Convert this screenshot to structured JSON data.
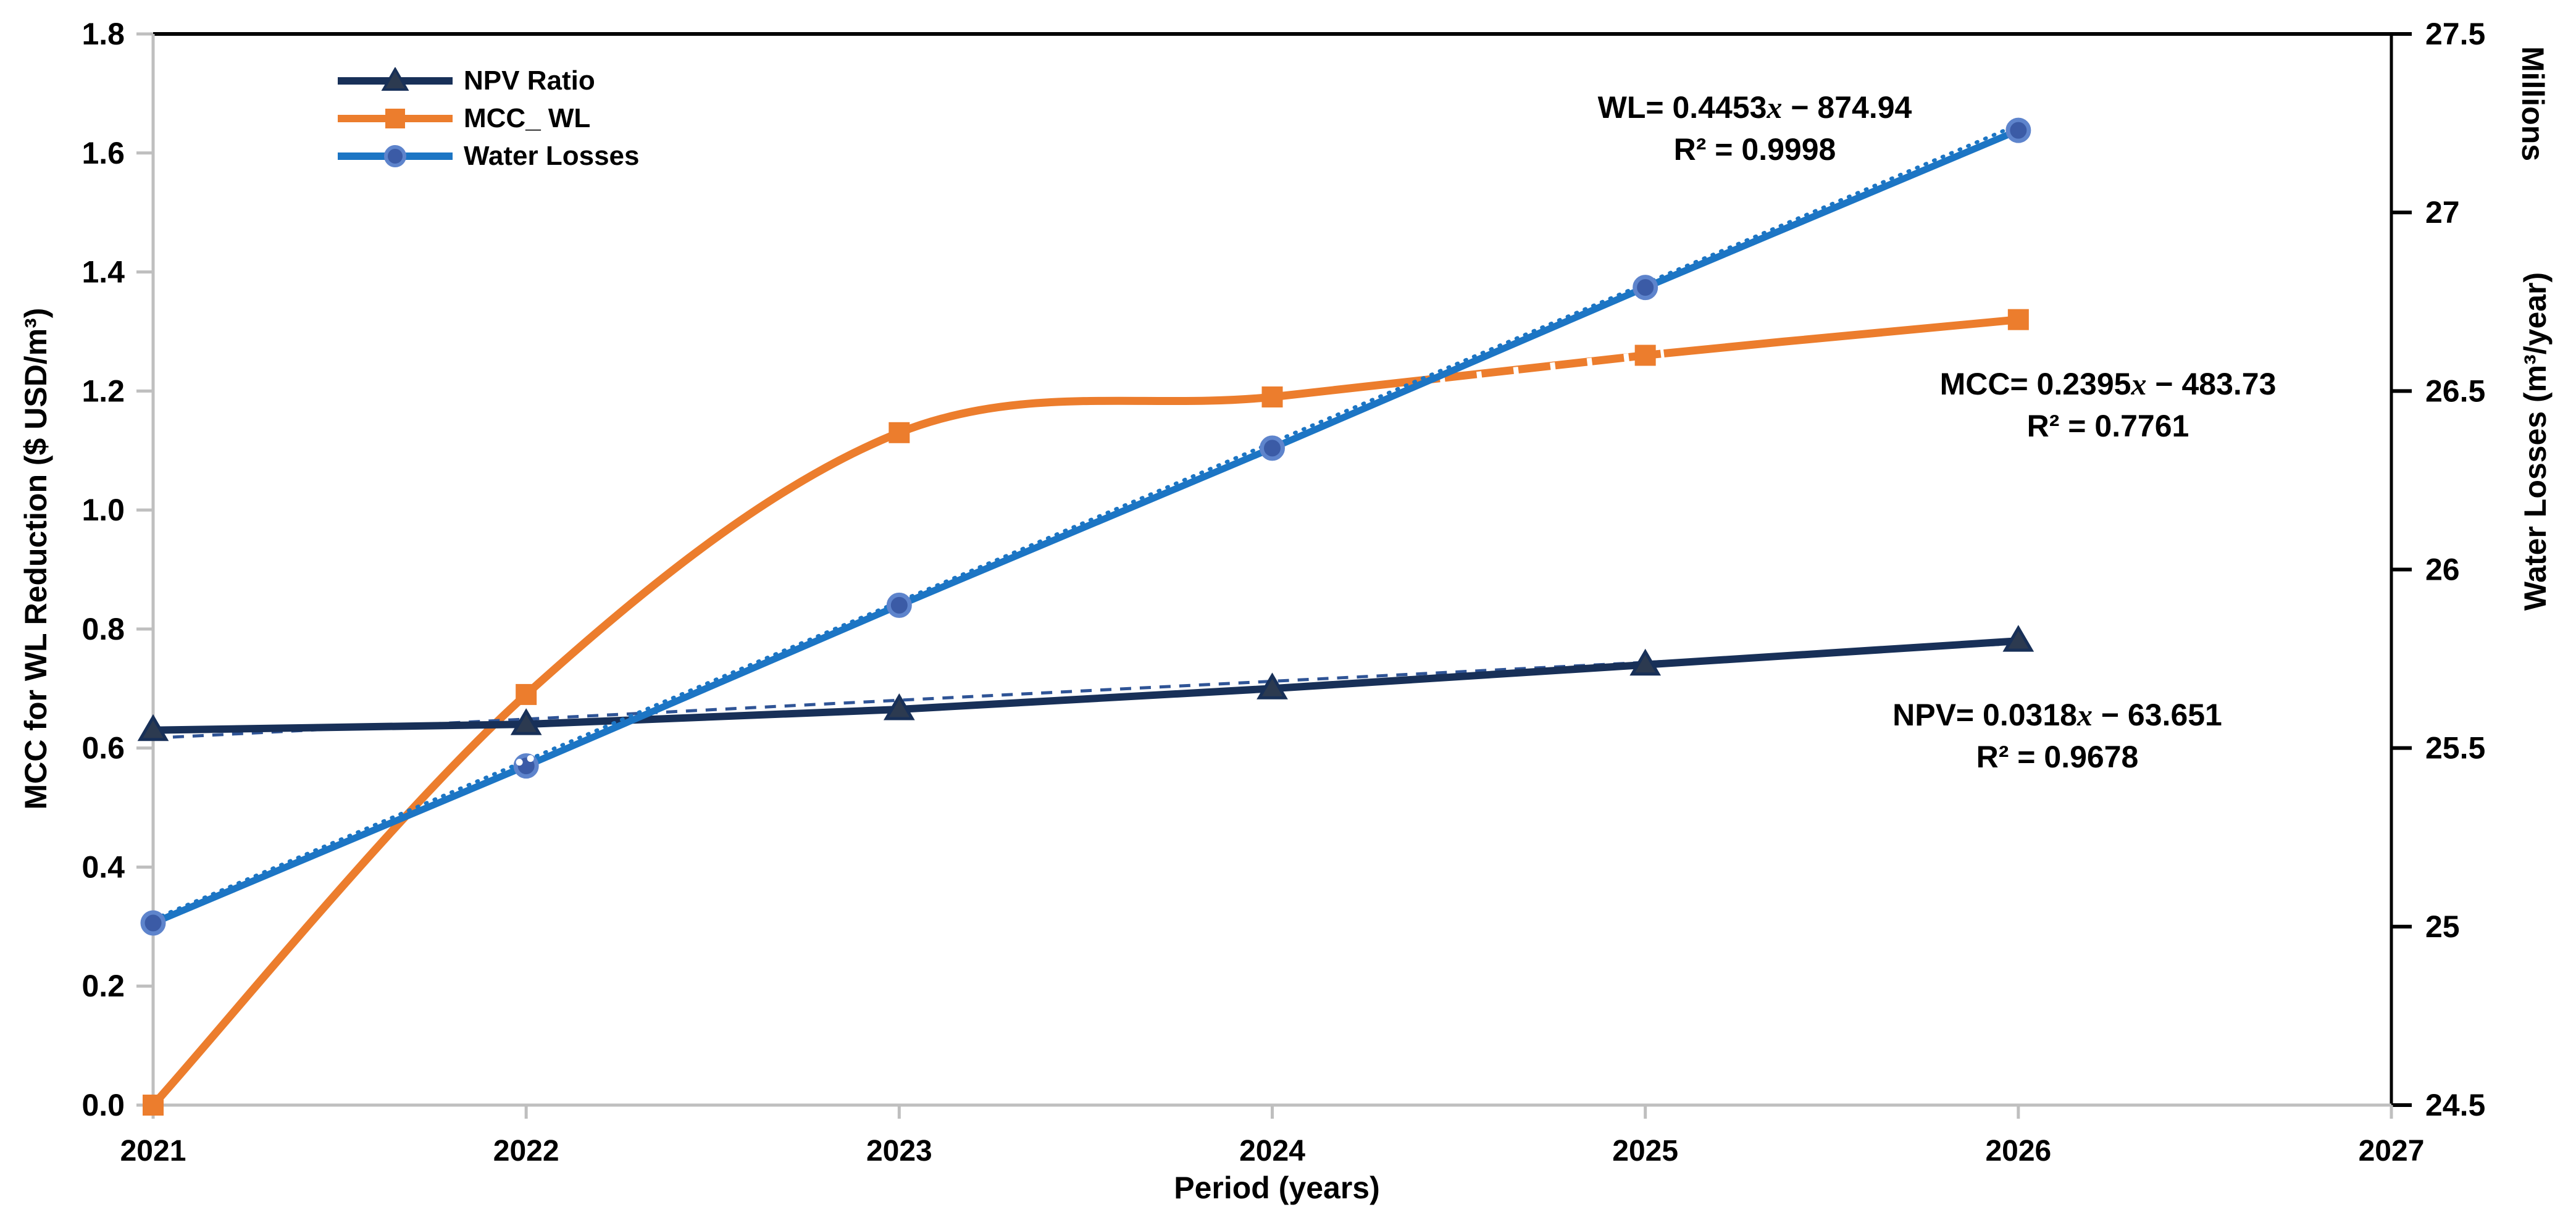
{
  "chart_data": {
    "type": "line",
    "title": "",
    "categories": [
      2021,
      2022,
      2023,
      2024,
      2025,
      2026
    ],
    "x_axis": {
      "label": "Period (years)",
      "ticks": [
        "2021",
        "2022",
        "2023",
        "2024",
        "2025",
        "2026",
        "2027"
      ],
      "range": [
        2021,
        2027
      ]
    },
    "left_axis": {
      "label": "MCC for WL Reduction ($ USD/m³)",
      "ticks": [
        "0.0",
        "0.2",
        "0.4",
        "0.6",
        "0.8",
        "1.0",
        "1.2",
        "1.4",
        "1.6",
        "1.8"
      ],
      "range": [
        0,
        1.8
      ]
    },
    "right_axis": {
      "label": "Water Losses (m³/year)",
      "units_label": "Millions",
      "ticks": [
        "24.5",
        "25",
        "25.5",
        "26",
        "26.5",
        "27",
        "27.5"
      ],
      "range": [
        24.5,
        27.5
      ]
    },
    "grid": "off",
    "legend_position": "inside-top-left",
    "series": [
      {
        "name": "NPV Ratio",
        "axis": "left",
        "marker": "triangle",
        "line_color": "#183058",
        "marker_fill": "#2C3A50",
        "marker_stroke": "#183058",
        "smooth": false,
        "values": [
          0.63,
          0.64,
          0.665,
          0.7,
          0.74,
          0.78
        ],
        "trendline": {
          "slope": 0.0318,
          "intercept": -63.651,
          "r2": 0.9678,
          "color": "#2F5496",
          "style": "dash",
          "visible": "full"
        }
      },
      {
        "name": "MCC_ WL",
        "axis": "left",
        "marker": "square",
        "line_color": "#EC7D2D",
        "marker_fill": "#EC7D2D",
        "marker_stroke": "#EC7D2D",
        "smooth": true,
        "values": [
          0.0,
          0.69,
          1.13,
          1.19,
          1.26,
          1.32
        ],
        "trendline": {
          "slope": 0.2395,
          "intercept": -483.73,
          "r2": 0.7761,
          "color": "#EC7D2D",
          "style": "dash",
          "visible": "partial"
        }
      },
      {
        "name": "Water Losses",
        "axis": "right",
        "marker": "circle",
        "line_color": "#1C75C4",
        "marker_fill": "#3B5BA6",
        "marker_stroke": "#5E84CC",
        "smooth": false,
        "values": [
          25.01,
          25.45,
          25.9,
          26.34,
          26.79,
          27.23
        ],
        "trendline": {
          "slope": 0.4453,
          "intercept": -874.94,
          "r2": 0.9998,
          "color": "#1C75C4",
          "style": "dot",
          "visible": "full"
        }
      }
    ],
    "annotations": [
      {
        "id": "wl",
        "lhs": "WL= 0.4453",
        "variable": "x",
        "rhs": " − 874.94",
        "r2": "R² = 0.9998"
      },
      {
        "id": "mcc",
        "lhs": "MCC= 0.2395",
        "variable": "x",
        "rhs": " − 483.73",
        "r2": "R² = 0.7761"
      },
      {
        "id": "npv",
        "lhs": "NPV= 0.0318",
        "variable": "x",
        "rhs": " − 63.651",
        "r2": "R² = 0.9678"
      }
    ],
    "axis_colors": {
      "primary_spines": "#BFBFBF",
      "secondary_spines": "#000000",
      "labels": "#000000"
    }
  },
  "legend": {
    "items": [
      "NPV Ratio",
      "MCC_ WL",
      "Water Losses"
    ]
  }
}
